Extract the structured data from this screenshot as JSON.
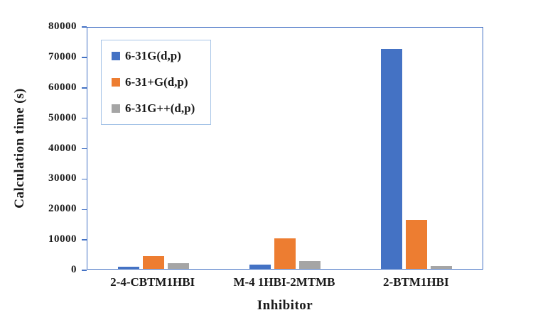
{
  "chart_data": {
    "type": "bar",
    "title": "",
    "categories": [
      "2-4-CBTM1HBI",
      "M-4 1HBI-2MTMB",
      "2-BTM1HBI"
    ],
    "series": [
      {
        "name": "6-31G(d,p)",
        "color": "#4472C4",
        "values": [
          800,
          1500,
          73000
        ]
      },
      {
        "name": "6-31+G(d,p)",
        "color": "#ED7D31",
        "values": [
          4200,
          10200,
          16200
        ]
      },
      {
        "name": "6-31G++(d,p)",
        "color": "#A5A5A5",
        "values": [
          1800,
          2500,
          1000
        ]
      }
    ],
    "xlabel": "Inhibitor",
    "ylabel": "Calculation time (s)",
    "ylim": [
      0,
      80000
    ],
    "ytick_step": 10000,
    "grid": false,
    "legend_position": "inside-top-left",
    "axis_color": "#4472C4",
    "legend_border_color": "#A6C4E7"
  }
}
